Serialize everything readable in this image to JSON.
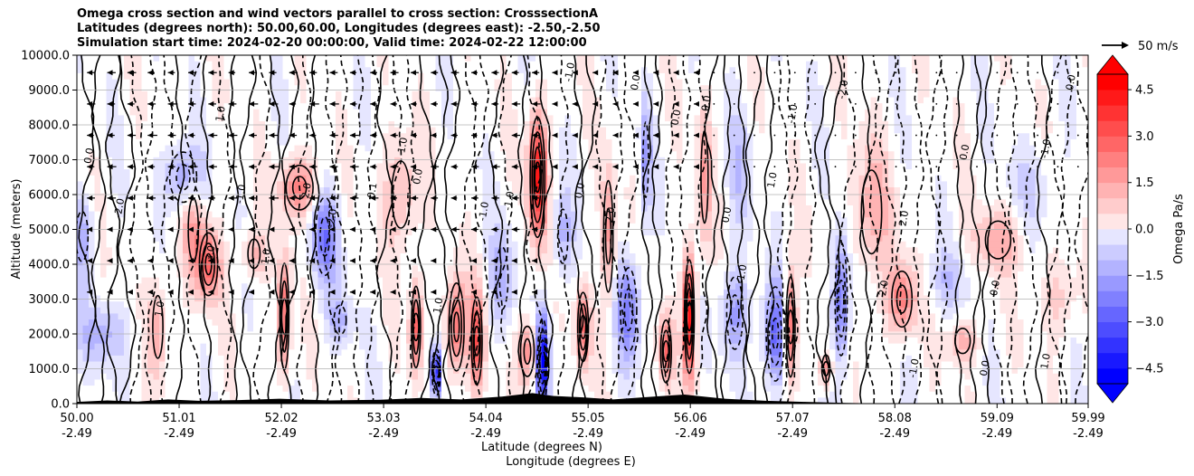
{
  "title": {
    "line1": "Omega cross section and wind vectors parallel to cross section: CrosssectionA",
    "line2": "Latitudes (degrees north): 50.00,60.00, Longitudes (degrees east): -2.50,-2.50",
    "line3": "Simulation start time: 2024-02-20 00:00:00, Valid time: 2024-02-22 12:00:00"
  },
  "colors": {
    "positive": "#ff0000",
    "negative": "#0000ff",
    "neutral": "#ffffff",
    "contour": "#000000",
    "grid": "#b0b0b0",
    "terrain": "#000000"
  },
  "chart_data": {
    "type": "heatmap",
    "subtype": "filled contour cross-section with contour lines and wind vectors",
    "ylabel": "Altitude (meters)",
    "xlabel_line1": "Latitude (degrees N)",
    "xlabel_line2": "Longitude (degrees E)",
    "xlim": [
      50.0,
      59.99
    ],
    "ylim": [
      0,
      10000
    ],
    "grid": true,
    "x_ticks": [
      {
        "lat": "50.00",
        "lon": "-2.49",
        "value": 50.0
      },
      {
        "lat": "51.01",
        "lon": "-2.49",
        "value": 51.01
      },
      {
        "lat": "52.02",
        "lon": "-2.49",
        "value": 52.02
      },
      {
        "lat": "53.03",
        "lon": "-2.49",
        "value": 53.03
      },
      {
        "lat": "54.04",
        "lon": "-2.49",
        "value": 54.04
      },
      {
        "lat": "55.05",
        "lon": "-2.49",
        "value": 55.05
      },
      {
        "lat": "56.06",
        "lon": "-2.49",
        "value": 56.06
      },
      {
        "lat": "57.07",
        "lon": "-2.49",
        "value": 57.07
      },
      {
        "lat": "58.08",
        "lon": "-2.49",
        "value": 58.08
      },
      {
        "lat": "59.09",
        "lon": "-2.49",
        "value": 59.09
      },
      {
        "lat": "59.99",
        "lon": "-2.49",
        "value": 59.99
      }
    ],
    "y_ticks": [
      {
        "label": "10000.0",
        "value": 10000
      },
      {
        "label": "9000.0",
        "value": 9000
      },
      {
        "label": "8000.0",
        "value": 8000
      },
      {
        "label": "7000.0",
        "value": 7000
      },
      {
        "label": "6000.0",
        "value": 6000
      },
      {
        "label": "5000.0",
        "value": 5000
      },
      {
        "label": "4000.0",
        "value": 4000
      },
      {
        "label": "3000.0",
        "value": 3000
      },
      {
        "label": "2000.0",
        "value": 2000
      },
      {
        "label": "1000.0",
        "value": 1000
      },
      {
        "label": "0.0",
        "value": 0
      }
    ],
    "colorbar": {
      "label": "Omega Pa/s",
      "range": [
        -5.0,
        5.0
      ],
      "extend": "both",
      "ticks": [
        {
          "label": "4.5",
          "value": 4.5
        },
        {
          "label": "3.0",
          "value": 3.0
        },
        {
          "label": "1.5",
          "value": 1.5
        },
        {
          "label": "0.0",
          "value": 0.0
        },
        {
          "label": "−1.5",
          "value": -1.5
        },
        {
          "label": "−3.0",
          "value": -3.0
        },
        {
          "label": "−4.5",
          "value": -4.5
        }
      ]
    },
    "vector_key": {
      "label": "50 m/s",
      "speed": 50
    },
    "features": [
      {
        "x": 50.05,
        "y": 4800,
        "value": -1.5,
        "width": 0.12,
        "height": 1200
      },
      {
        "x": 50.25,
        "y": 2000,
        "value": -1.4,
        "width": 0.25,
        "height": 900
      },
      {
        "x": 50.8,
        "y": 2200,
        "value": 1.5,
        "width": 0.1,
        "height": 1500
      },
      {
        "x": 51.05,
        "y": 6500,
        "value": -2.0,
        "width": 0.2,
        "height": 900
      },
      {
        "x": 51.15,
        "y": 5000,
        "value": 1.8,
        "width": 0.1,
        "height": 1500
      },
      {
        "x": 51.3,
        "y": 4000,
        "value": 3.0,
        "width": 0.12,
        "height": 1000
      },
      {
        "x": 51.75,
        "y": 4300,
        "value": 1.5,
        "width": 0.12,
        "height": 700
      },
      {
        "x": 52.05,
        "y": 2500,
        "value": 3.0,
        "width": 0.06,
        "height": 1700
      },
      {
        "x": 52.2,
        "y": 6200,
        "value": 2.5,
        "width": 0.2,
        "height": 800
      },
      {
        "x": 52.45,
        "y": 4800,
        "value": -2.5,
        "width": 0.14,
        "height": 1400
      },
      {
        "x": 52.6,
        "y": 2400,
        "value": -1.5,
        "width": 0.12,
        "height": 700
      },
      {
        "x": 53.2,
        "y": 6000,
        "value": 1.5,
        "width": 0.18,
        "height": 1600
      },
      {
        "x": 53.35,
        "y": 2200,
        "value": 3.0,
        "width": 0.06,
        "height": 1300
      },
      {
        "x": 53.55,
        "y": 900,
        "value": -5.0,
        "width": 0.05,
        "height": 700
      },
      {
        "x": 53.75,
        "y": 2200,
        "value": 3.0,
        "width": 0.1,
        "height": 1400
      },
      {
        "x": 53.95,
        "y": 1800,
        "value": 3.5,
        "width": 0.07,
        "height": 1400
      },
      {
        "x": 54.2,
        "y": 3600,
        "value": -1.5,
        "width": 0.12,
        "height": 1500
      },
      {
        "x": 54.45,
        "y": 1500,
        "value": 2.0,
        "width": 0.1,
        "height": 900
      },
      {
        "x": 54.55,
        "y": 6500,
        "value": 4.5,
        "width": 0.09,
        "height": 1800
      },
      {
        "x": 54.6,
        "y": 1200,
        "value": -5.0,
        "width": 0.06,
        "height": 1300
      },
      {
        "x": 54.8,
        "y": 4800,
        "value": -1.5,
        "width": 0.1,
        "height": 1300
      },
      {
        "x": 55.0,
        "y": 2200,
        "value": 3.0,
        "width": 0.07,
        "height": 1100
      },
      {
        "x": 55.25,
        "y": 4800,
        "value": 2.0,
        "width": 0.07,
        "height": 2000
      },
      {
        "x": 55.45,
        "y": 2700,
        "value": -2.5,
        "width": 0.12,
        "height": 1500
      },
      {
        "x": 55.62,
        "y": 7000,
        "value": -1.8,
        "width": 0.05,
        "height": 1800
      },
      {
        "x": 55.82,
        "y": 1500,
        "value": 3.0,
        "width": 0.07,
        "height": 1000
      },
      {
        "x": 56.05,
        "y": 2500,
        "value": 5.0,
        "width": 0.06,
        "height": 1700
      },
      {
        "x": 56.2,
        "y": 6500,
        "value": 1.8,
        "width": 0.07,
        "height": 2200
      },
      {
        "x": 56.5,
        "y": 2600,
        "value": -2.0,
        "width": 0.12,
        "height": 1300
      },
      {
        "x": 56.55,
        "y": 6700,
        "value": -1.0,
        "width": 0.12,
        "height": 1800
      },
      {
        "x": 56.9,
        "y": 2000,
        "value": -3.0,
        "width": 0.12,
        "height": 1500
      },
      {
        "x": 57.05,
        "y": 2200,
        "value": 3.5,
        "width": 0.06,
        "height": 1600
      },
      {
        "x": 57.4,
        "y": 1000,
        "value": 2.5,
        "width": 0.06,
        "height": 500
      },
      {
        "x": 57.55,
        "y": 3000,
        "value": -3.0,
        "width": 0.08,
        "height": 1800
      },
      {
        "x": 57.85,
        "y": 5500,
        "value": 1.5,
        "width": 0.2,
        "height": 2000
      },
      {
        "x": 58.15,
        "y": 3000,
        "value": 2.5,
        "width": 0.15,
        "height": 1000
      },
      {
        "x": 58.6,
        "y": 3500,
        "value": -1.0,
        "width": 0.22,
        "height": 900
      },
      {
        "x": 58.75,
        "y": 1800,
        "value": 1.5,
        "width": 0.15,
        "height": 600
      },
      {
        "x": 59.1,
        "y": 4700,
        "value": 1.5,
        "width": 0.25,
        "height": 900
      },
      {
        "x": 59.45,
        "y": 6200,
        "value": -0.8,
        "width": 0.25,
        "height": 1200
      },
      {
        "x": 59.7,
        "y": 3000,
        "value": 1.0,
        "width": 0.18,
        "height": 1100
      }
    ],
    "terrain": [
      [
        50.0,
        50
      ],
      [
        50.3,
        90
      ],
      [
        50.6,
        60
      ],
      [
        50.9,
        120
      ],
      [
        51.2,
        80
      ],
      [
        51.6,
        100
      ],
      [
        52.0,
        140
      ],
      [
        52.5,
        90
      ],
      [
        53.0,
        110
      ],
      [
        53.4,
        160
      ],
      [
        53.8,
        120
      ],
      [
        54.2,
        200
      ],
      [
        54.5,
        300
      ],
      [
        54.7,
        220
      ],
      [
        55.0,
        180
      ],
      [
        55.3,
        120
      ],
      [
        55.7,
        200
      ],
      [
        56.0,
        260
      ],
      [
        56.4,
        140
      ],
      [
        56.8,
        80
      ],
      [
        57.2,
        50
      ],
      [
        57.6,
        20
      ],
      [
        58.0,
        0
      ],
      [
        59.99,
        0
      ]
    ],
    "contour_labels": [
      {
        "x": 50.15,
        "y": 7100,
        "text": "0.0"
      },
      {
        "x": 50.45,
        "y": 5600,
        "text": "-2.0"
      },
      {
        "x": 50.85,
        "y": 2700,
        "text": "1.0"
      },
      {
        "x": 51.35,
        "y": 4300,
        "text": "3.0"
      },
      {
        "x": 51.45,
        "y": 8300,
        "text": "1.0"
      },
      {
        "x": 51.65,
        "y": 6000,
        "text": "-1.0"
      },
      {
        "x": 51.9,
        "y": 4200,
        "text": "1.0"
      },
      {
        "x": 52.3,
        "y": 6100,
        "text": "2.0"
      },
      {
        "x": 52.55,
        "y": 5300,
        "text": "-2.0"
      },
      {
        "x": 52.95,
        "y": 6100,
        "text": "0.1"
      },
      {
        "x": 53.25,
        "y": 7400,
        "text": "1.0"
      },
      {
        "x": 53.4,
        "y": 6500,
        "text": "0.0"
      },
      {
        "x": 53.6,
        "y": 2800,
        "text": "1.0"
      },
      {
        "x": 54.05,
        "y": 5500,
        "text": "-1.0"
      },
      {
        "x": 54.3,
        "y": 5800,
        "text": "-1.0"
      },
      {
        "x": 54.9,
        "y": 9500,
        "text": "-1.0"
      },
      {
        "x": 55.0,
        "y": 6100,
        "text": "0.0"
      },
      {
        "x": 55.3,
        "y": 5400,
        "text": "2.0"
      },
      {
        "x": 55.55,
        "y": 9200,
        "text": "0.0"
      },
      {
        "x": 55.95,
        "y": 8200,
        "text": "0.0"
      },
      {
        "x": 56.25,
        "y": 8600,
        "text": "0.0"
      },
      {
        "x": 56.45,
        "y": 5400,
        "text": "0.0"
      },
      {
        "x": 56.6,
        "y": 3700,
        "text": "-1.0"
      },
      {
        "x": 56.9,
        "y": 6400,
        "text": "1.0"
      },
      {
        "x": 57.1,
        "y": 8300,
        "text": "-1.0"
      },
      {
        "x": 57.6,
        "y": 9000,
        "text": "-2.0"
      },
      {
        "x": 58.0,
        "y": 3300,
        "text": "2.0"
      },
      {
        "x": 58.2,
        "y": 5300,
        "text": "2.0"
      },
      {
        "x": 58.3,
        "y": 1000,
        "text": "-1.0"
      },
      {
        "x": 58.8,
        "y": 7200,
        "text": "0.0"
      },
      {
        "x": 59.0,
        "y": 1000,
        "text": "0.0"
      },
      {
        "x": 59.1,
        "y": 3300,
        "text": "0.0"
      },
      {
        "x": 59.6,
        "y": 7300,
        "text": "-1.0"
      },
      {
        "x": 59.6,
        "y": 1200,
        "text": "1.0"
      },
      {
        "x": 59.85,
        "y": 9200,
        "text": "0.0"
      }
    ]
  }
}
